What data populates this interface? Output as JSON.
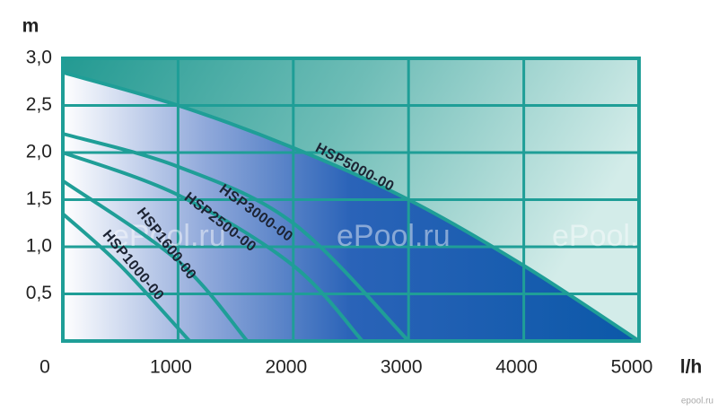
{
  "chart_data": {
    "type": "line",
    "x_label": "l/h",
    "y_label": "m",
    "series": [
      {
        "name": "HSP5000-00",
        "color": "#1f9e97",
        "x": [
          0,
          1000,
          2000,
          3000,
          4000,
          5000
        ],
        "values": [
          2.85,
          2.5,
          2.05,
          1.5,
          0.8,
          0
        ]
      },
      {
        "name": "HSP3000-00",
        "color": "#1f9e97",
        "x": [
          0,
          1000,
          2000,
          3000
        ],
        "values": [
          2.2,
          1.85,
          1.25,
          0
        ]
      },
      {
        "name": "HSP2500-00",
        "color": "#1f9e97",
        "x": [
          0,
          1000,
          2000,
          2600
        ],
        "values": [
          2.0,
          1.55,
          0.8,
          0
        ]
      },
      {
        "name": "HSP1600-00",
        "color": "#1f9e97",
        "x": [
          0,
          1000,
          1600
        ],
        "values": [
          1.7,
          0.85,
          0
        ]
      },
      {
        "name": "HSP1000-00",
        "color": "#1f9e97",
        "x": [
          0,
          500,
          1100
        ],
        "values": [
          1.35,
          0.8,
          0
        ]
      }
    ],
    "xlim": [
      0,
      5000
    ],
    "ylim": [
      0,
      3
    ],
    "xticks": [
      0,
      1000,
      2000,
      3000,
      4000,
      5000
    ],
    "yticks": [
      {
        "value": 0.5,
        "label": "0,5"
      },
      {
        "value": 1,
        "label": "1,0"
      },
      {
        "value": 1.5,
        "label": "1,5"
      },
      {
        "value": 2,
        "label": "2,0"
      },
      {
        "value": 2.5,
        "label": "2,5"
      },
      {
        "value": 3,
        "label": "3,0"
      }
    ],
    "grid": true,
    "watermarks": [
      "l.ru",
      "ePool.ru",
      "ePool.ru",
      "ePool.ru",
      "epool.ru"
    ]
  }
}
